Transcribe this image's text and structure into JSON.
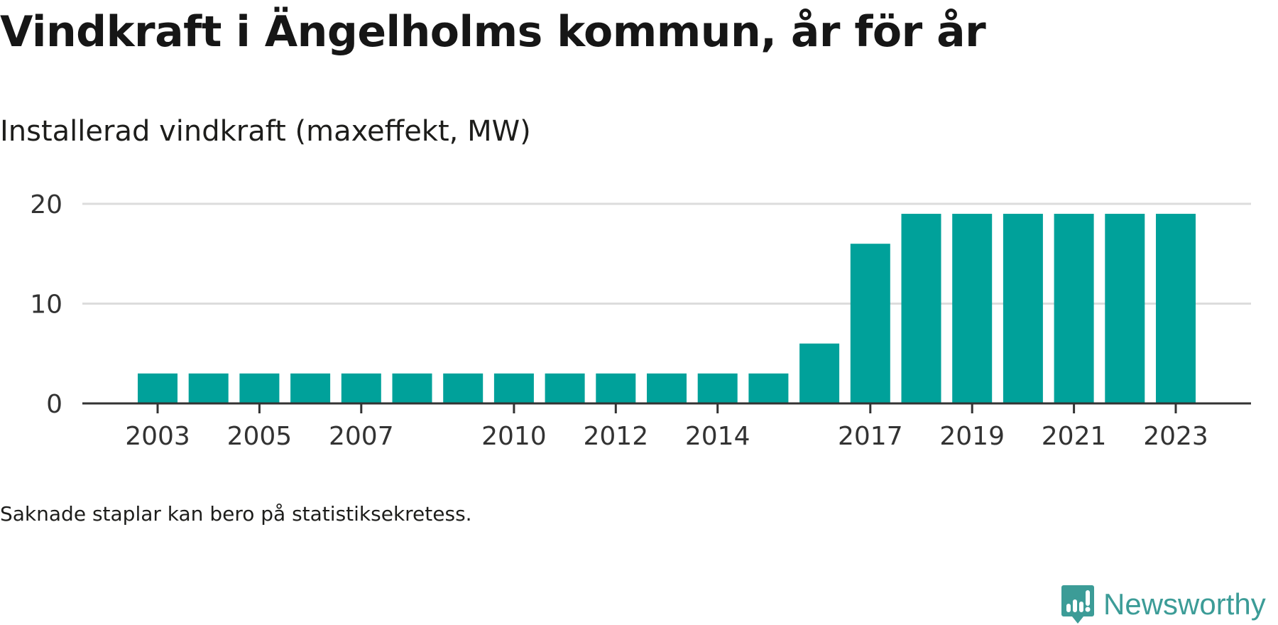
{
  "title": "Vindkraft i Ängelholms kommun, år för år",
  "subtitle": "Installerad vindkraft (maxeffekt, MW)",
  "note": "Saknade staplar kan bero på statistiksekretess.",
  "brand": {
    "name": "Newsworthy",
    "color": "#3c9c97"
  },
  "colors": {
    "bar": "#00a19a",
    "grid": "#dcdcdc",
    "axis": "#333333",
    "text": "#333333"
  },
  "chart_data": {
    "type": "bar",
    "title": "Vindkraft i Ängelholms kommun, år för år",
    "subtitle": "Installerad vindkraft (maxeffekt, MW)",
    "xlabel": "",
    "ylabel": "",
    "categories": [
      2003,
      2004,
      2005,
      2006,
      2007,
      2008,
      2009,
      2010,
      2011,
      2012,
      2013,
      2014,
      2015,
      2016,
      2017,
      2018,
      2019,
      2020,
      2021,
      2022,
      2023
    ],
    "values": [
      3,
      3,
      3,
      3,
      3,
      3,
      3,
      3,
      3,
      3,
      3,
      3,
      3,
      6,
      16,
      19,
      19,
      19,
      19,
      19,
      19
    ],
    "x_tick_labels": [
      "2003",
      "2005",
      "2007",
      "2010",
      "2012",
      "2014",
      "2017",
      "2019",
      "2021",
      "2023"
    ],
    "y_ticks": [
      0,
      10,
      20
    ],
    "ylim": [
      0,
      20
    ],
    "grid": true,
    "legend": "none"
  }
}
